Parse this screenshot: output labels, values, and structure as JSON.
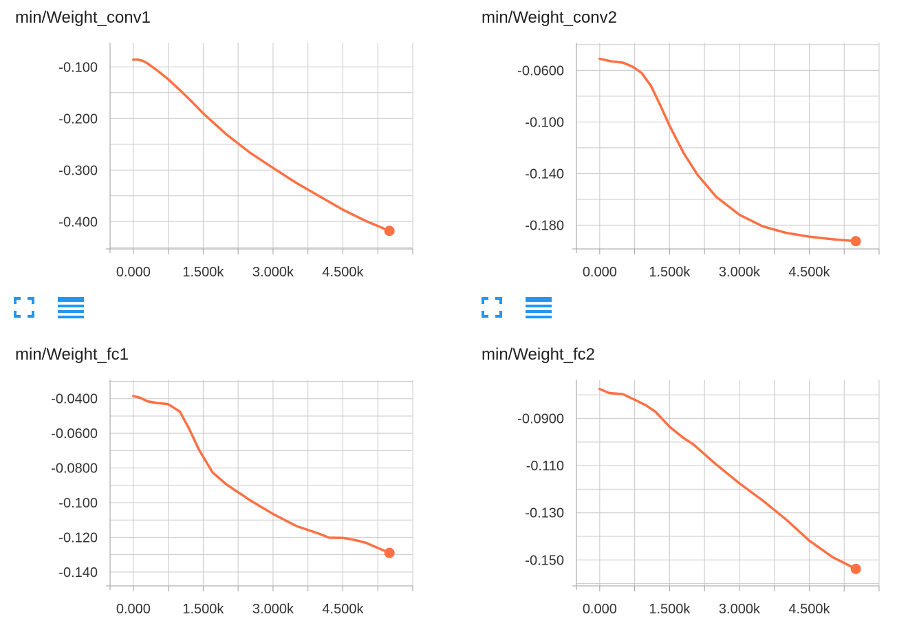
{
  "colors": {
    "series": "#ff7043",
    "grid": "#c8c8c8",
    "axis": "#9e9e9e",
    "control": "#2196f3"
  },
  "controls": {
    "expand_icon": "fullscreen-icon",
    "data_icon": "list-icon"
  },
  "chart_data": [
    {
      "type": "line",
      "title": "min/Weight_conv1",
      "xlabel": "",
      "ylabel": "",
      "x_ticks": [
        0,
        1500,
        3000,
        4500
      ],
      "x_tick_labels": [
        "0.000",
        "1.500k",
        "3.000k",
        "4.500k"
      ],
      "y_ticks": [
        -0.1,
        -0.2,
        -0.3,
        -0.4
      ],
      "y_tick_labels": [
        "-0.100",
        "-0.200",
        "-0.300",
        "-0.400"
      ],
      "xlim": [
        -500,
        6000
      ],
      "ylim": [
        -0.453,
        -0.053
      ],
      "grid": true,
      "series": [
        {
          "x": [
            0,
            100,
            200,
            300,
            500,
            750,
            1000,
            1250,
            1500,
            2000,
            2500,
            3000,
            3500,
            4000,
            4500,
            5000,
            5500
          ],
          "y": [
            -0.086,
            -0.086,
            -0.088,
            -0.093,
            -0.106,
            -0.124,
            -0.145,
            -0.167,
            -0.19,
            -0.231,
            -0.266,
            -0.296,
            -0.325,
            -0.351,
            -0.377,
            -0.399,
            -0.418
          ]
        }
      ]
    },
    {
      "type": "line",
      "title": "min/Weight_conv2",
      "xlabel": "",
      "ylabel": "",
      "x_ticks": [
        0,
        1500,
        3000,
        4500
      ],
      "x_tick_labels": [
        "0.000",
        "1.500k",
        "3.000k",
        "4.500k"
      ],
      "y_ticks": [
        -0.06,
        -0.1,
        -0.14,
        -0.18
      ],
      "y_tick_labels": [
        "-0.0600",
        "-0.100",
        "-0.140",
        "-0.180"
      ],
      "xlim": [
        -500,
        6000
      ],
      "ylim": [
        -0.1985,
        -0.0385
      ],
      "grid": true,
      "series": [
        {
          "x": [
            0,
            250,
            500,
            700,
            900,
            1100,
            1300,
            1500,
            1800,
            2100,
            2500,
            3000,
            3500,
            4000,
            4500,
            5000,
            5500
          ],
          "y": [
            -0.051,
            -0.053,
            -0.054,
            -0.057,
            -0.062,
            -0.072,
            -0.087,
            -0.103,
            -0.124,
            -0.141,
            -0.158,
            -0.172,
            -0.181,
            -0.186,
            -0.189,
            -0.191,
            -0.1925
          ]
        }
      ]
    },
    {
      "type": "line",
      "title": "min/Weight_fc1",
      "xlabel": "",
      "ylabel": "",
      "x_ticks": [
        0,
        1500,
        3000,
        4500
      ],
      "x_tick_labels": [
        "0.000",
        "1.500k",
        "3.000k",
        "4.500k"
      ],
      "y_ticks": [
        -0.04,
        -0.06,
        -0.08,
        -0.1,
        -0.12,
        -0.14
      ],
      "y_tick_labels": [
        "-0.0400",
        "-0.0600",
        "-0.0800",
        "-0.100",
        "-0.120",
        "-0.140"
      ],
      "xlim": [
        -500,
        6000
      ],
      "ylim": [
        -0.148,
        -0.029
      ],
      "grid": true,
      "series": [
        {
          "x": [
            0,
            150,
            300,
            500,
            750,
            1000,
            1200,
            1400,
            1700,
            2000,
            2500,
            3000,
            3500,
            4000,
            4200,
            4500,
            4800,
            5000,
            5200,
            5500
          ],
          "y": [
            -0.0385,
            -0.0395,
            -0.0415,
            -0.0425,
            -0.0432,
            -0.0475,
            -0.0575,
            -0.069,
            -0.0825,
            -0.0895,
            -0.0985,
            -0.1065,
            -0.1135,
            -0.118,
            -0.1202,
            -0.1203,
            -0.1218,
            -0.1232,
            -0.1255,
            -0.129
          ]
        }
      ]
    },
    {
      "type": "line",
      "title": "min/Weight_fc2",
      "xlabel": "",
      "ylabel": "",
      "x_ticks": [
        0,
        1500,
        3000,
        4500
      ],
      "x_tick_labels": [
        "0.000",
        "1.500k",
        "3.000k",
        "4.500k"
      ],
      "y_ticks": [
        -0.09,
        -0.11,
        -0.13,
        -0.15
      ],
      "y_tick_labels": [
        "-0.0900",
        "-0.110",
        "-0.130",
        "-0.150"
      ],
      "xlim": [
        -500,
        6000
      ],
      "ylim": [
        -0.161,
        -0.0735
      ],
      "grid": true,
      "series": [
        {
          "x": [
            0,
            200,
            500,
            800,
            1000,
            1200,
            1500,
            1800,
            2000,
            2500,
            3000,
            3500,
            4000,
            4500,
            5000,
            5500
          ],
          "y": [
            -0.0775,
            -0.0792,
            -0.0797,
            -0.0825,
            -0.0845,
            -0.0872,
            -0.0935,
            -0.0983,
            -0.1008,
            -0.1095,
            -0.1175,
            -0.1248,
            -0.1328,
            -0.1418,
            -0.1488,
            -0.1538
          ]
        }
      ]
    }
  ]
}
